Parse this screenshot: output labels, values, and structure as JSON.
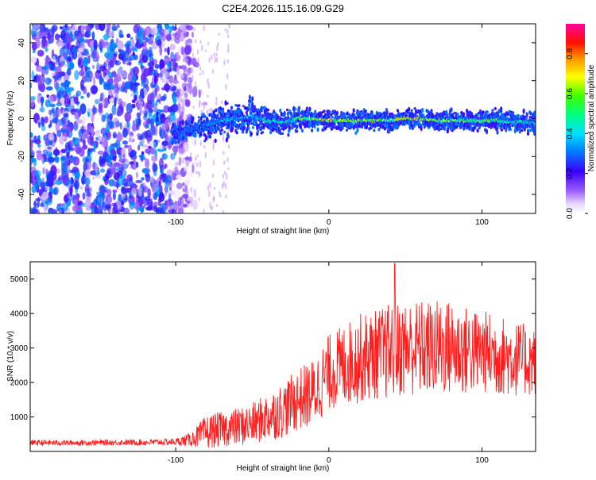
{
  "figure_title": "C2E4.2026.115.16.09.G29",
  "chart_data": [
    {
      "type": "heatmap",
      "xlabel": "Height of straight line (km)",
      "ylabel": "Frequency (Hz)",
      "xlim": [
        -195,
        135
      ],
      "ylim": [
        -50,
        50
      ],
      "xticks": [
        -100,
        0,
        100
      ],
      "xtick_labels": [
        "-100",
        "0",
        "100"
      ],
      "yticks": [
        -40,
        -20,
        0,
        20,
        40
      ],
      "ytick_labels": [
        "-40",
        "-20",
        "0",
        "20",
        "40"
      ],
      "colorbar": {
        "label": "Normalized spectral amplitude",
        "range": [
          0,
          0.95
        ],
        "ticks": [
          0,
          0.2,
          0.4,
          0.6,
          0.8
        ],
        "tick_labels": [
          "0.0",
          "0.2",
          "0.4",
          "0.6",
          "0.8"
        ]
      },
      "noise_region": {
        "x": [
          -195,
          -90
        ],
        "freq": [
          -50,
          50
        ],
        "amplitude": [
          0.05,
          0.35
        ]
      },
      "signal_ridge": [
        {
          "x": -102,
          "freq": -8,
          "width": 4,
          "amp": 0.3
        },
        {
          "x": -90,
          "freq": -5,
          "width": 4,
          "amp": 0.35
        },
        {
          "x": -80,
          "freq": -4,
          "width": 5,
          "amp": 0.4
        },
        {
          "x": -70,
          "freq": -1,
          "width": 6,
          "amp": 0.4
        },
        {
          "x": -60,
          "freq": 0,
          "width": 7,
          "amp": 0.45
        },
        {
          "x": -50,
          "freq": 1,
          "width": 7,
          "amp": 0.45
        },
        {
          "x": -40,
          "freq": -1,
          "width": 6,
          "amp": 0.5
        },
        {
          "x": -30,
          "freq": -2,
          "width": 5,
          "amp": 0.55
        },
        {
          "x": -20,
          "freq": 0,
          "width": 5,
          "amp": 0.6
        },
        {
          "x": -10,
          "freq": 0,
          "width": 4,
          "amp": 0.75
        },
        {
          "x": 0,
          "freq": -1,
          "width": 4,
          "amp": 0.85
        },
        {
          "x": 10,
          "freq": -1,
          "width": 4,
          "amp": 0.8
        },
        {
          "x": 20,
          "freq": -1,
          "width": 4,
          "amp": 0.75
        },
        {
          "x": 30,
          "freq": -1,
          "width": 4,
          "amp": 0.7
        },
        {
          "x": 40,
          "freq": -1,
          "width": 4,
          "amp": 0.7
        },
        {
          "x": 50,
          "freq": 0,
          "width": 4,
          "amp": 0.8
        },
        {
          "x": 60,
          "freq": 0,
          "width": 4,
          "amp": 0.85
        },
        {
          "x": 70,
          "freq": -1,
          "width": 4,
          "amp": 0.75
        },
        {
          "x": 80,
          "freq": -1,
          "width": 4,
          "amp": 0.7
        },
        {
          "x": 90,
          "freq": -1,
          "width": 4,
          "amp": 0.65
        },
        {
          "x": 100,
          "freq": -1,
          "width": 4,
          "amp": 0.7
        },
        {
          "x": 110,
          "freq": -1,
          "width": 4,
          "amp": 0.6
        },
        {
          "x": 120,
          "freq": -2,
          "width": 4,
          "amp": 0.6
        },
        {
          "x": 130,
          "freq": -2,
          "width": 4,
          "amp": 0.5
        }
      ]
    },
    {
      "type": "line",
      "xlabel": "Height of straight line (km)",
      "ylabel": "SNR (10 * v/v)",
      "xlim": [
        -195,
        135
      ],
      "ylim": [
        0,
        5500
      ],
      "xticks": [
        -100,
        0,
        100
      ],
      "xtick_labels": [
        "-100",
        "0",
        "100"
      ],
      "yticks": [
        1000,
        2000,
        3000,
        4000,
        5000
      ],
      "ytick_labels": [
        "1000",
        "2000",
        "3000",
        "4000",
        "5000"
      ],
      "series": [
        {
          "name": "SNR",
          "color": "#ff1e1e",
          "x": [
            -195,
            -180,
            -160,
            -140,
            -120,
            -100,
            -90,
            -80,
            -70,
            -60,
            -50,
            -40,
            -30,
            -20,
            -10,
            0,
            10,
            20,
            30,
            40,
            50,
            60,
            70,
            80,
            90,
            100,
            110,
            120,
            135
          ],
          "mean": [
            250,
            250,
            250,
            260,
            260,
            280,
            350,
            550,
            650,
            700,
            800,
            1000,
            1200,
            1500,
            1700,
            2300,
            2500,
            2700,
            2800,
            2900,
            3000,
            3000,
            3000,
            3000,
            2900,
            2900,
            2800,
            2700,
            2600
          ],
          "spread": [
            80,
            80,
            80,
            80,
            90,
            100,
            200,
            500,
            500,
            550,
            600,
            700,
            800,
            900,
            1000,
            1100,
            1200,
            1300,
            1300,
            1400,
            1400,
            1400,
            1400,
            1400,
            1300,
            1200,
            1200,
            1100,
            1000
          ],
          "max": 5450,
          "max_at_x": 43
        }
      ]
    }
  ]
}
